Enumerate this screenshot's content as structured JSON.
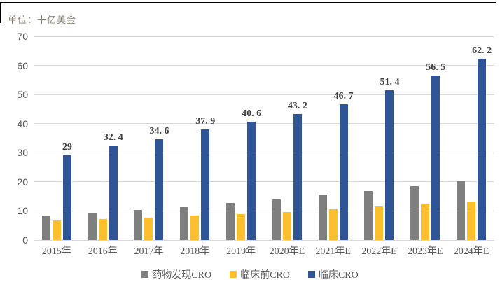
{
  "unit_label": "单位：十亿美金",
  "colors": {
    "grid": "#D9D9D9",
    "axis_text": "#595959",
    "data_label": "#404040",
    "unit_label": "#8C8274",
    "frame_border": "#000000",
    "series_gray": "#7F7F7F",
    "series_yellow": "#FDBF2D",
    "series_blue": "#2F5597"
  },
  "chart_data": {
    "type": "bar",
    "title": "",
    "unit_label": "单位：十亿美金",
    "xlabel": "",
    "ylabel": "",
    "categories": [
      "2015年",
      "2016年",
      "2017年",
      "2018年",
      "2019年",
      "2020年E",
      "2021年E",
      "2022年E",
      "2023年E",
      "2024年E"
    ],
    "series": [
      {
        "name": "药物发现CRO",
        "color": "#7F7F7F",
        "values": [
          8.4,
          9.3,
          10.3,
          11.4,
          12.7,
          14.0,
          15.6,
          16.8,
          18.5,
          20.2
        ]
      },
      {
        "name": "临床前CRO",
        "color": "#FDBF2D",
        "values": [
          6.8,
          7.1,
          7.7,
          8.4,
          8.9,
          9.6,
          10.6,
          11.5,
          12.4,
          13.3
        ]
      },
      {
        "name": "临床CRO",
        "color": "#2F5597",
        "values": [
          29,
          32.4,
          34.6,
          37.9,
          40.6,
          43.2,
          46.7,
          51.4,
          56.5,
          62.2
        ],
        "data_labels": [
          "29",
          "32. 4",
          "34. 6",
          "37. 9",
          "40. 6",
          "43. 2",
          "46. 7",
          "51. 4",
          "56. 5",
          "62. 2"
        ]
      }
    ],
    "ylim": [
      0,
      70
    ],
    "yticks": [
      0,
      10,
      20,
      30,
      40,
      50,
      60,
      70
    ],
    "grid": true,
    "legend_position": "bottom"
  }
}
